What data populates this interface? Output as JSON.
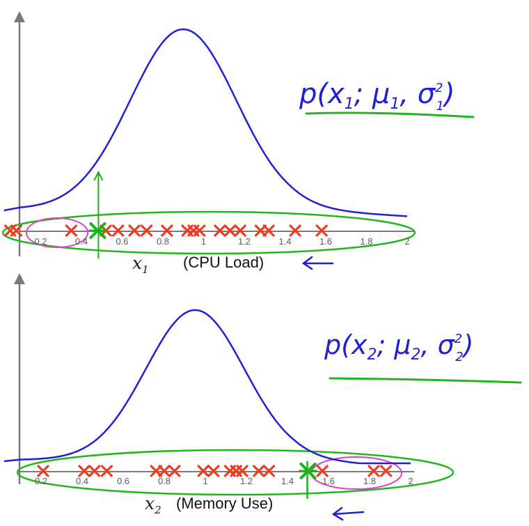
{
  "colors": {
    "curve": "#1f1fd6",
    "marker": "#f03a1e",
    "anomaly": "#18b318",
    "highlight": "#22b51c",
    "circle": "#e040c8",
    "axis": "#7a7a7a"
  },
  "icons": {
    "axis_arrow": "up-arrow-icon",
    "pointer": "left-arrow-icon"
  },
  "chart_data": [
    {
      "type": "scatter",
      "xlabel_var": "x",
      "xlabel_sub": "1",
      "xlabel_desc": "(CPU Load)",
      "annotation": {
        "lead": "p(x",
        "sub1": "1",
        "mid": "; μ",
        "sub2": "1",
        "comma": ", σ",
        "sup": "2",
        "sub3": "1",
        "close": ")"
      },
      "xlim": [
        0,
        2
      ],
      "x_ticks": [
        "0.2",
        "0.4",
        "0.6",
        "0.8",
        "1",
        "1.2",
        "1.4",
        "1.6",
        "1.8",
        "2"
      ],
      "x_tick_values": [
        0.2,
        0.4,
        0.6,
        0.8,
        1.0,
        1.2,
        1.4,
        1.6,
        1.8,
        2.0
      ],
      "points": [
        0.05,
        0.08,
        0.35,
        0.52,
        0.58,
        0.66,
        0.72,
        0.82,
        0.92,
        0.95,
        0.98,
        1.08,
        1.13,
        1.18,
        1.28,
        1.32,
        1.45,
        1.58
      ],
      "anomaly_x": 0.48,
      "curve_peak": 0.9,
      "curve_sigma": 0.26
    },
    {
      "type": "scatter",
      "xlabel_var": "x",
      "xlabel_sub": "2",
      "xlabel_desc": "(Memory Use)",
      "annotation": {
        "lead": "p(x",
        "sub1": "2",
        "mid": "; μ",
        "sub2": "2",
        "comma": ", σ",
        "sup": "2",
        "sub3": "2",
        "close": ")"
      },
      "xlim": [
        0,
        2
      ],
      "x_ticks": [
        "0.2",
        "0.4",
        "0.6",
        "0.8",
        "1",
        "1.2",
        "1.4",
        "1.6",
        "1.8",
        "2"
      ],
      "x_tick_values": [
        0.2,
        0.4,
        0.6,
        0.8,
        1.0,
        1.2,
        1.4,
        1.6,
        1.8,
        2.0
      ],
      "points": [
        0.21,
        0.41,
        0.46,
        0.52,
        0.76,
        0.8,
        0.85,
        0.99,
        1.04,
        1.12,
        1.15,
        1.18,
        1.26,
        1.31,
        1.57,
        1.82,
        1.88
      ],
      "anomaly_x": 1.5,
      "curve_peak": 0.95,
      "curve_sigma": 0.24
    }
  ]
}
